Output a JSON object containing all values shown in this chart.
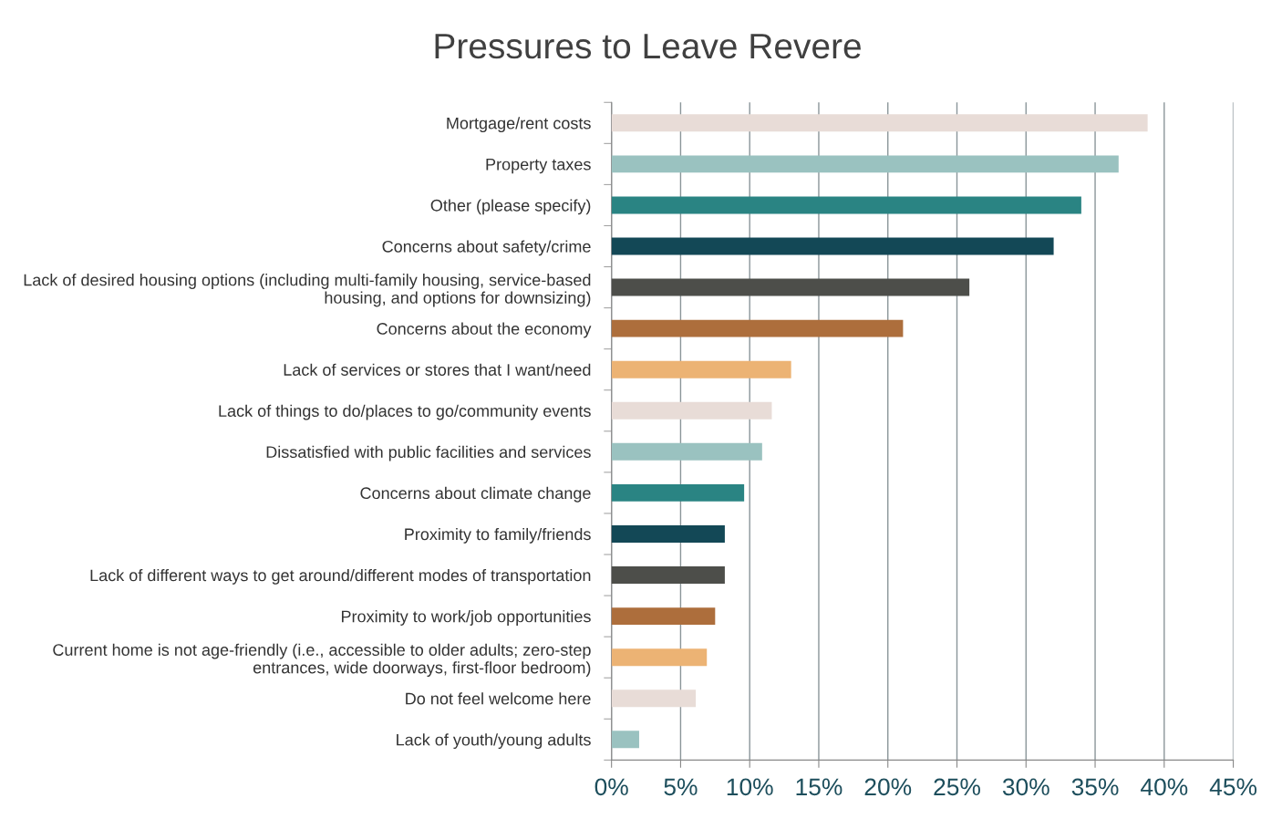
{
  "chart_data": {
    "type": "bar",
    "orientation": "horizontal",
    "title": "Pressures to Leave Revere",
    "categories": [
      "Mortgage/rent costs",
      "Property taxes",
      "Other (please specify)",
      "Concerns about safety/crime",
      "Lack of desired housing options (including multi-family housing, service-based\nhousing, and options for downsizing)",
      "Concerns about the economy",
      "Lack of services or stores that I want/need",
      "Lack of things to do/places to go/community events",
      "Dissatisfied with public facilities and services",
      "Concerns about climate change",
      "Proximity to family/friends",
      "Lack of different ways to get around/different modes of transportation",
      "Proximity to work/job opportunities",
      "Current home is not age-friendly (i.e., accessible to older adults; zero-step\nentrances, wide doorways, first-floor bedroom)",
      "Do not feel welcome here",
      "Lack of youth/young adults"
    ],
    "values": [
      38.8,
      36.7,
      34.0,
      32.0,
      25.9,
      21.1,
      13.0,
      11.6,
      10.9,
      9.6,
      8.2,
      8.2,
      7.5,
      6.9,
      6.1,
      2.0
    ],
    "colors": [
      "#e8dcd7",
      "#9ac2c0",
      "#2a8483",
      "#134856",
      "#4d4e4a",
      "#ad6e3c",
      "#ecb374",
      "#e8dcd7",
      "#9ac2c0",
      "#2a8483",
      "#134856",
      "#4d4e4a",
      "#ad6e3c",
      "#ecb374",
      "#e8dcd7",
      "#9ac2c0"
    ],
    "xlim": [
      0,
      45
    ],
    "xticks": [
      {
        "value": 0,
        "label": "0%"
      },
      {
        "value": 5,
        "label": "5%"
      },
      {
        "value": 10,
        "label": "10%"
      },
      {
        "value": 15,
        "label": "15%"
      },
      {
        "value": 20,
        "label": "20%"
      },
      {
        "value": 25,
        "label": "25%"
      },
      {
        "value": 30,
        "label": "30%"
      },
      {
        "value": 35,
        "label": "35%"
      },
      {
        "value": 40,
        "label": "40%"
      },
      {
        "value": 45,
        "label": "45%"
      }
    ],
    "grid": "x"
  }
}
